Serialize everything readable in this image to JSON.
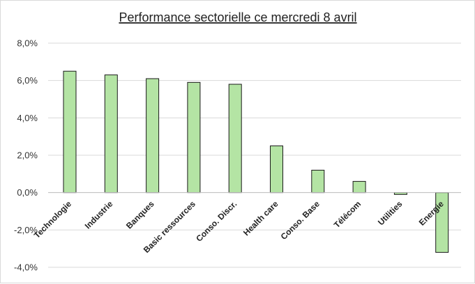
{
  "chart_data": {
    "type": "bar",
    "title": "Performance sectorielle ce mercredi 8 avril",
    "xlabel": "",
    "ylabel": "",
    "categories": [
      "Technologie",
      "Industrie",
      "Banques",
      "Basic ressources",
      "Conso. Discr.",
      "Health care",
      "Conso. Base",
      "Télécom",
      "Utilities",
      "Energie"
    ],
    "series": [
      {
        "values": [
          6.5,
          6.3,
          6.1,
          5.9,
          5.8,
          2.5,
          1.2,
          0.6,
          -0.1,
          -3.2
        ]
      }
    ],
    "ylim": [
      -4,
      8
    ],
    "yticks": [
      8,
      6,
      4,
      2,
      0,
      -2,
      -4
    ],
    "ytick_labels": [
      "8,0%",
      "6,0%",
      "4,0%",
      "2,0%",
      "0,0%",
      "-2,0%",
      "-4,0%"
    ],
    "grid": true,
    "legend": "none",
    "colors": {
      "bar_fill": "#b4e4a4",
      "bar_stroke": "#1a1a1a",
      "grid": "#d9d9d9",
      "axis": "#bfbfbf"
    }
  }
}
